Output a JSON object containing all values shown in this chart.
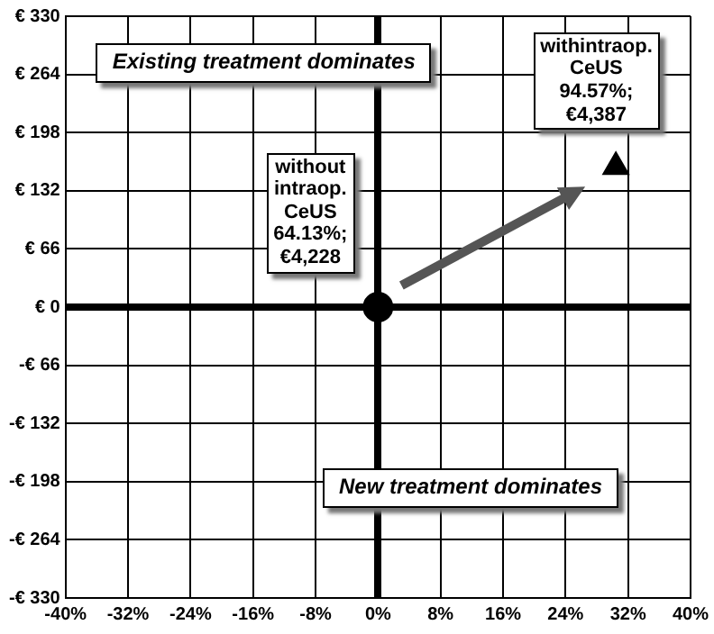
{
  "chart_data": {
    "type": "scatter",
    "series": [
      {
        "color": "#000000",
        "marker": "circle",
        "x": [
          0
        ],
        "values": [
          0
        ]
      },
      {
        "color": "#000000",
        "marker": "triangle",
        "x": [
          30.44
        ],
        "values": [
          159
        ]
      }
    ],
    "xlim": [
      -40,
      40
    ],
    "xticks": [
      {
        "value": -40,
        "label": "-40%"
      },
      {
        "value": -32,
        "label": "-32%"
      },
      {
        "value": -24,
        "label": "-24%"
      },
      {
        "value": -16,
        "label": "-16%"
      },
      {
        "value": -8,
        "label": "-8%"
      },
      {
        "value": 0,
        "label": "0%"
      },
      {
        "value": 8,
        "label": "8%"
      },
      {
        "value": 16,
        "label": "16%"
      },
      {
        "value": 24,
        "label": "24%"
      },
      {
        "value": 32,
        "label": "32%"
      },
      {
        "value": 40,
        "label": "40%"
      }
    ],
    "ylim": [
      -330,
      330
    ],
    "yticks": [
      {
        "value": -330,
        "label": "-€ 330"
      },
      {
        "value": -264,
        "label": "-€ 264"
      },
      {
        "value": -198,
        "label": "-€ 198"
      },
      {
        "value": -132,
        "label": "-€ 132"
      },
      {
        "value": -66,
        "label": "-€ 66"
      },
      {
        "value": 0,
        "label": "€ 0"
      },
      {
        "value": 66,
        "label": "€ 66"
      },
      {
        "value": 132,
        "label": "€ 132"
      },
      {
        "value": 198,
        "label": "€ 198"
      },
      {
        "value": 264,
        "label": "€ 264"
      },
      {
        "value": 330,
        "label": "€ 330"
      }
    ],
    "grid": true,
    "legend": false,
    "annotations": [
      "Existing treatment dominates",
      "New treatment dominates",
      {
        "text": "without\nintraop.\nCeUS\n64.13%;\n€4,228",
        "x": 0,
        "y": 0
      },
      {
        "text": "withintraop.\nCeUS\n94.57%;\n€4,387",
        "x": 30.44,
        "y": 159
      }
    ]
  }
}
